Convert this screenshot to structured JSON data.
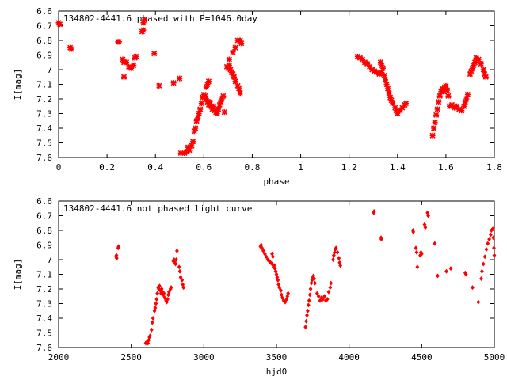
{
  "chart_data": [
    {
      "type": "scatter",
      "title": "134802-4441.6 phased with P=1046.0day",
      "xlabel": "phase",
      "ylabel": "I[mag]",
      "xlim": [
        0,
        1.8
      ],
      "ylim": [
        7.6,
        6.6
      ],
      "y_inverted": true,
      "xticks": [
        "0",
        "0.2",
        "0.4",
        "0.6",
        "0.8",
        "1",
        "1.2",
        "1.4",
        "1.6",
        "1.8"
      ],
      "yticks": [
        "6.6",
        "6.7",
        "6.8",
        "6.9",
        "7",
        "7.1",
        "7.2",
        "7.3",
        "7.4",
        "7.5",
        "7.6"
      ],
      "marker": "cross",
      "color": "#ff0000",
      "segments": [
        [
          [
            0.0,
            6.68
          ],
          [
            0.005,
            6.69
          ]
        ],
        [
          [
            0.048,
            6.85
          ],
          [
            0.052,
            6.86
          ]
        ],
        [
          [
            0.245,
            6.81
          ],
          [
            0.25,
            6.81
          ]
        ],
        [
          [
            0.265,
            6.93
          ],
          [
            0.27,
            6.95
          ],
          [
            0.28,
            6.95
          ],
          [
            0.29,
            6.98
          ],
          [
            0.3,
            6.99
          ],
          [
            0.31,
            6.97
          ],
          [
            0.315,
            6.92
          ],
          [
            0.32,
            6.91
          ]
        ],
        [
          [
            0.27,
            7.05
          ]
        ],
        [
          [
            0.345,
            6.74
          ],
          [
            0.35,
            6.73
          ]
        ],
        [
          [
            0.35,
            6.68
          ],
          [
            0.355,
            6.66
          ]
        ],
        [
          [
            0.395,
            6.89
          ]
        ],
        [
          [
            0.415,
            7.11
          ]
        ],
        [
          [
            0.475,
            7.09
          ]
        ],
        [
          [
            0.5,
            7.06
          ]
        ],
        [
          [
            0.505,
            7.57
          ],
          [
            0.52,
            7.57
          ],
          [
            0.53,
            7.56
          ],
          [
            0.535,
            7.53
          ],
          [
            0.54,
            7.55
          ],
          [
            0.55,
            7.52
          ],
          [
            0.555,
            7.49
          ],
          [
            0.56,
            7.42
          ],
          [
            0.565,
            7.4
          ],
          [
            0.57,
            7.35
          ],
          [
            0.575,
            7.33
          ],
          [
            0.58,
            7.3
          ],
          [
            0.585,
            7.27
          ],
          [
            0.59,
            7.23
          ],
          [
            0.595,
            7.19
          ],
          [
            0.6,
            7.17
          ],
          [
            0.605,
            7.18
          ],
          [
            0.61,
            7.2
          ],
          [
            0.615,
            7.22
          ],
          [
            0.62,
            7.24
          ],
          [
            0.625,
            7.22
          ],
          [
            0.63,
            7.25
          ],
          [
            0.635,
            7.27
          ],
          [
            0.64,
            7.25
          ],
          [
            0.645,
            7.28
          ],
          [
            0.65,
            7.29
          ],
          [
            0.655,
            7.3
          ],
          [
            0.66,
            7.27
          ],
          [
            0.665,
            7.24
          ],
          [
            0.67,
            7.22
          ],
          [
            0.675,
            7.2
          ],
          [
            0.68,
            7.18
          ]
        ],
        [
          [
            0.61,
            7.12
          ],
          [
            0.615,
            7.1
          ],
          [
            0.62,
            7.08
          ]
        ],
        [
          [
            0.685,
            7.29
          ]
        ],
        [
          [
            0.695,
            6.98
          ],
          [
            0.7,
            6.99
          ],
          [
            0.705,
            6.97
          ],
          [
            0.71,
            7.0
          ],
          [
            0.715,
            7.02
          ],
          [
            0.72,
            7.03
          ],
          [
            0.725,
            7.05
          ],
          [
            0.73,
            7.08
          ],
          [
            0.74,
            7.11
          ],
          [
            0.745,
            7.13
          ],
          [
            0.75,
            7.16
          ]
        ],
        [
          [
            0.705,
            6.93
          ]
        ],
        [
          [
            0.72,
            6.88
          ],
          [
            0.73,
            6.85
          ]
        ],
        [
          [
            0.74,
            6.8
          ],
          [
            0.75,
            6.8
          ],
          [
            0.755,
            6.82
          ]
        ],
        [
          [
            1.235,
            6.91
          ],
          [
            1.245,
            6.92
          ],
          [
            1.255,
            6.93
          ],
          [
            1.265,
            6.95
          ],
          [
            1.275,
            6.96
          ],
          [
            1.285,
            6.98
          ],
          [
            1.295,
            7.0
          ],
          [
            1.305,
            7.01
          ],
          [
            1.315,
            7.02
          ],
          [
            1.325,
            7.03
          ],
          [
            1.335,
            7.02
          ],
          [
            1.345,
            7.04
          ],
          [
            1.35,
            7.07
          ],
          [
            1.355,
            7.1
          ],
          [
            1.36,
            7.13
          ],
          [
            1.365,
            7.16
          ],
          [
            1.37,
            7.19
          ],
          [
            1.375,
            7.21
          ],
          [
            1.38,
            7.23
          ],
          [
            1.39,
            7.26
          ],
          [
            1.395,
            7.28
          ],
          [
            1.4,
            7.3
          ],
          [
            1.41,
            7.28
          ],
          [
            1.42,
            7.26
          ],
          [
            1.43,
            7.24
          ],
          [
            1.435,
            7.23
          ]
        ],
        [
          [
            1.33,
            6.95
          ],
          [
            1.335,
            6.97
          ],
          [
            1.34,
            6.99
          ]
        ],
        [
          [
            1.545,
            7.45
          ],
          [
            1.55,
            7.4
          ],
          [
            1.555,
            7.36
          ],
          [
            1.56,
            7.31
          ],
          [
            1.565,
            7.27
          ],
          [
            1.57,
            7.22
          ],
          [
            1.575,
            7.18
          ],
          [
            1.58,
            7.15
          ],
          [
            1.585,
            7.13
          ],
          [
            1.59,
            7.15
          ],
          [
            1.595,
            7.12
          ],
          [
            1.6,
            7.11
          ],
          [
            1.605,
            7.14
          ],
          [
            1.61,
            7.18
          ]
        ],
        [
          [
            1.615,
            7.25
          ],
          [
            1.625,
            7.24
          ],
          [
            1.635,
            7.26
          ],
          [
            1.645,
            7.25
          ],
          [
            1.655,
            7.27
          ],
          [
            1.665,
            7.28
          ],
          [
            1.675,
            7.25
          ],
          [
            1.68,
            7.22
          ],
          [
            1.685,
            7.2
          ],
          [
            1.69,
            7.17
          ]
        ],
        [
          [
            1.7,
            7.03
          ],
          [
            1.705,
            7.01
          ],
          [
            1.71,
            6.99
          ],
          [
            1.715,
            6.97
          ],
          [
            1.72,
            6.95
          ],
          [
            1.725,
            6.92
          ],
          [
            1.735,
            6.93
          ],
          [
            1.745,
            6.96
          ],
          [
            1.755,
            7.0
          ],
          [
            1.76,
            7.03
          ],
          [
            1.765,
            7.05
          ]
        ]
      ]
    },
    {
      "type": "scatter",
      "title": "134802-4441.6 not phased light curve",
      "xlabel": "hjd0",
      "ylabel": "I[mag]",
      "xlim": [
        2000,
        5000
      ],
      "ylim": [
        7.6,
        6.6
      ],
      "y_inverted": true,
      "xticks": [
        "2000",
        "2500",
        "3000",
        "3500",
        "4000",
        "4500",
        "5000"
      ],
      "yticks": [
        "6.6",
        "6.7",
        "6.8",
        "6.9",
        "7",
        "7.1",
        "7.2",
        "7.3",
        "7.4",
        "7.5",
        "7.6"
      ],
      "marker": "diamond",
      "color": "#ff0000",
      "segments": [
        [
          [
            2395,
            6.98
          ],
          [
            2398,
            6.97
          ],
          [
            2400,
            6.99
          ]
        ],
        [
          [
            2410,
            6.92
          ],
          [
            2413,
            6.91
          ]
        ],
        [
          [
            2600,
            7.57
          ],
          [
            2610,
            7.56
          ],
          [
            2615,
            7.57
          ],
          [
            2620,
            7.55
          ],
          [
            2625,
            7.53
          ],
          [
            2630,
            7.52
          ],
          [
            2640,
            7.48
          ],
          [
            2645,
            7.43
          ],
          [
            2650,
            7.4
          ],
          [
            2660,
            7.35
          ],
          [
            2665,
            7.33
          ],
          [
            2670,
            7.3
          ],
          [
            2675,
            7.27
          ],
          [
            2680,
            7.23
          ],
          [
            2685,
            7.19
          ],
          [
            2690,
            7.2
          ],
          [
            2695,
            7.18
          ],
          [
            2700,
            7.21
          ],
          [
            2705,
            7.23
          ],
          [
            2710,
            7.2
          ],
          [
            2715,
            7.22
          ],
          [
            2720,
            7.24
          ],
          [
            2725,
            7.23
          ],
          [
            2730,
            7.26
          ],
          [
            2740,
            7.28
          ],
          [
            2745,
            7.29
          ],
          [
            2750,
            7.27
          ],
          [
            2755,
            7.24
          ],
          [
            2760,
            7.22
          ],
          [
            2770,
            7.2
          ],
          [
            2775,
            7.19
          ]
        ],
        [
          [
            2790,
            7.01
          ],
          [
            2795,
            7.0
          ],
          [
            2800,
            7.02
          ],
          [
            2805,
            7.03
          ],
          [
            2810,
            7.0
          ]
        ],
        [
          [
            2815,
            6.94
          ]
        ],
        [
          [
            2830,
            7.05
          ],
          [
            2835,
            7.08
          ],
          [
            2840,
            7.12
          ],
          [
            2850,
            7.14
          ],
          [
            2855,
            7.17
          ],
          [
            2860,
            7.19
          ]
        ],
        [
          [
            3390,
            6.91
          ],
          [
            3395,
            6.9
          ],
          [
            3400,
            6.92
          ],
          [
            3410,
            6.94
          ],
          [
            3420,
            6.96
          ],
          [
            3430,
            6.98
          ],
          [
            3440,
            7.0
          ],
          [
            3450,
            7.01
          ],
          [
            3460,
            7.02
          ],
          [
            3470,
            7.03
          ],
          [
            3480,
            7.05
          ],
          [
            3485,
            7.04
          ],
          [
            3490,
            7.06
          ],
          [
            3495,
            7.08
          ],
          [
            3500,
            7.1
          ],
          [
            3505,
            7.12
          ],
          [
            3510,
            7.14
          ],
          [
            3515,
            7.17
          ],
          [
            3520,
            7.19
          ],
          [
            3530,
            7.21
          ],
          [
            3535,
            7.24
          ],
          [
            3540,
            7.26
          ],
          [
            3550,
            7.28
          ],
          [
            3560,
            7.29
          ],
          [
            3570,
            7.27
          ],
          [
            3575,
            7.25
          ],
          [
            3580,
            7.23
          ]
        ],
        [
          [
            3470,
            6.96
          ],
          [
            3475,
            6.98
          ]
        ],
        [
          [
            3700,
            7.46
          ],
          [
            3705,
            7.42
          ],
          [
            3710,
            7.38
          ],
          [
            3715,
            7.35
          ],
          [
            3720,
            7.31
          ],
          [
            3725,
            7.28
          ],
          [
            3730,
            7.24
          ],
          [
            3735,
            7.2
          ],
          [
            3740,
            7.16
          ],
          [
            3745,
            7.14
          ],
          [
            3750,
            7.12
          ],
          [
            3755,
            7.11
          ],
          [
            3760,
            7.13
          ],
          [
            3765,
            7.16
          ]
        ],
        [
          [
            3780,
            7.23
          ],
          [
            3790,
            7.25
          ],
          [
            3800,
            7.28
          ],
          [
            3810,
            7.26
          ],
          [
            3820,
            7.27
          ],
          [
            3830,
            7.25
          ],
          [
            3840,
            7.28
          ],
          [
            3850,
            7.27
          ],
          [
            3860,
            7.22
          ],
          [
            3870,
            7.19
          ],
          [
            3875,
            7.16
          ]
        ],
        [
          [
            3890,
            7.0
          ],
          [
            3895,
            6.97
          ],
          [
            3900,
            6.95
          ],
          [
            3905,
            6.93
          ],
          [
            3910,
            6.92
          ],
          [
            3920,
            6.95
          ],
          [
            3930,
            6.99
          ],
          [
            3935,
            7.02
          ],
          [
            3940,
            7.04
          ]
        ],
        [
          [
            4170,
            6.68
          ],
          [
            4172,
            6.67
          ]
        ],
        [
          [
            4220,
            6.85
          ],
          [
            4222,
            6.86
          ]
        ],
        [
          [
            4440,
            6.8
          ],
          [
            4442,
            6.81
          ]
        ],
        [
          [
            4460,
            6.92
          ],
          [
            4465,
            6.95
          ]
        ],
        [
          [
            4470,
            7.05
          ]
        ],
        [
          [
            4490,
            6.97
          ],
          [
            4495,
            6.95
          ],
          [
            4500,
            6.96
          ]
        ],
        [
          [
            4520,
            6.76
          ],
          [
            4525,
            6.78
          ]
        ],
        [
          [
            4540,
            6.68
          ],
          [
            4545,
            6.7
          ]
        ],
        [
          [
            4590,
            6.89
          ]
        ],
        [
          [
            4610,
            7.11
          ]
        ],
        [
          [
            4670,
            7.08
          ]
        ],
        [
          [
            4700,
            7.06
          ]
        ],
        [
          [
            4800,
            7.09
          ],
          [
            4805,
            7.1
          ]
        ],
        [
          [
            4850,
            7.19
          ]
        ],
        [
          [
            4890,
            7.29
          ]
        ],
        [
          [
            4910,
            7.13
          ],
          [
            4915,
            7.08
          ],
          [
            4925,
            7.03
          ],
          [
            4935,
            6.98
          ],
          [
            4945,
            6.93
          ],
          [
            4955,
            6.89
          ],
          [
            4965,
            6.86
          ],
          [
            4975,
            6.83
          ],
          [
            4980,
            6.8
          ],
          [
            4990,
            6.79
          ]
        ],
        [
          [
            4993,
            6.85
          ],
          [
            4997,
            6.92
          ],
          [
            5000,
            6.97
          ]
        ]
      ]
    }
  ]
}
